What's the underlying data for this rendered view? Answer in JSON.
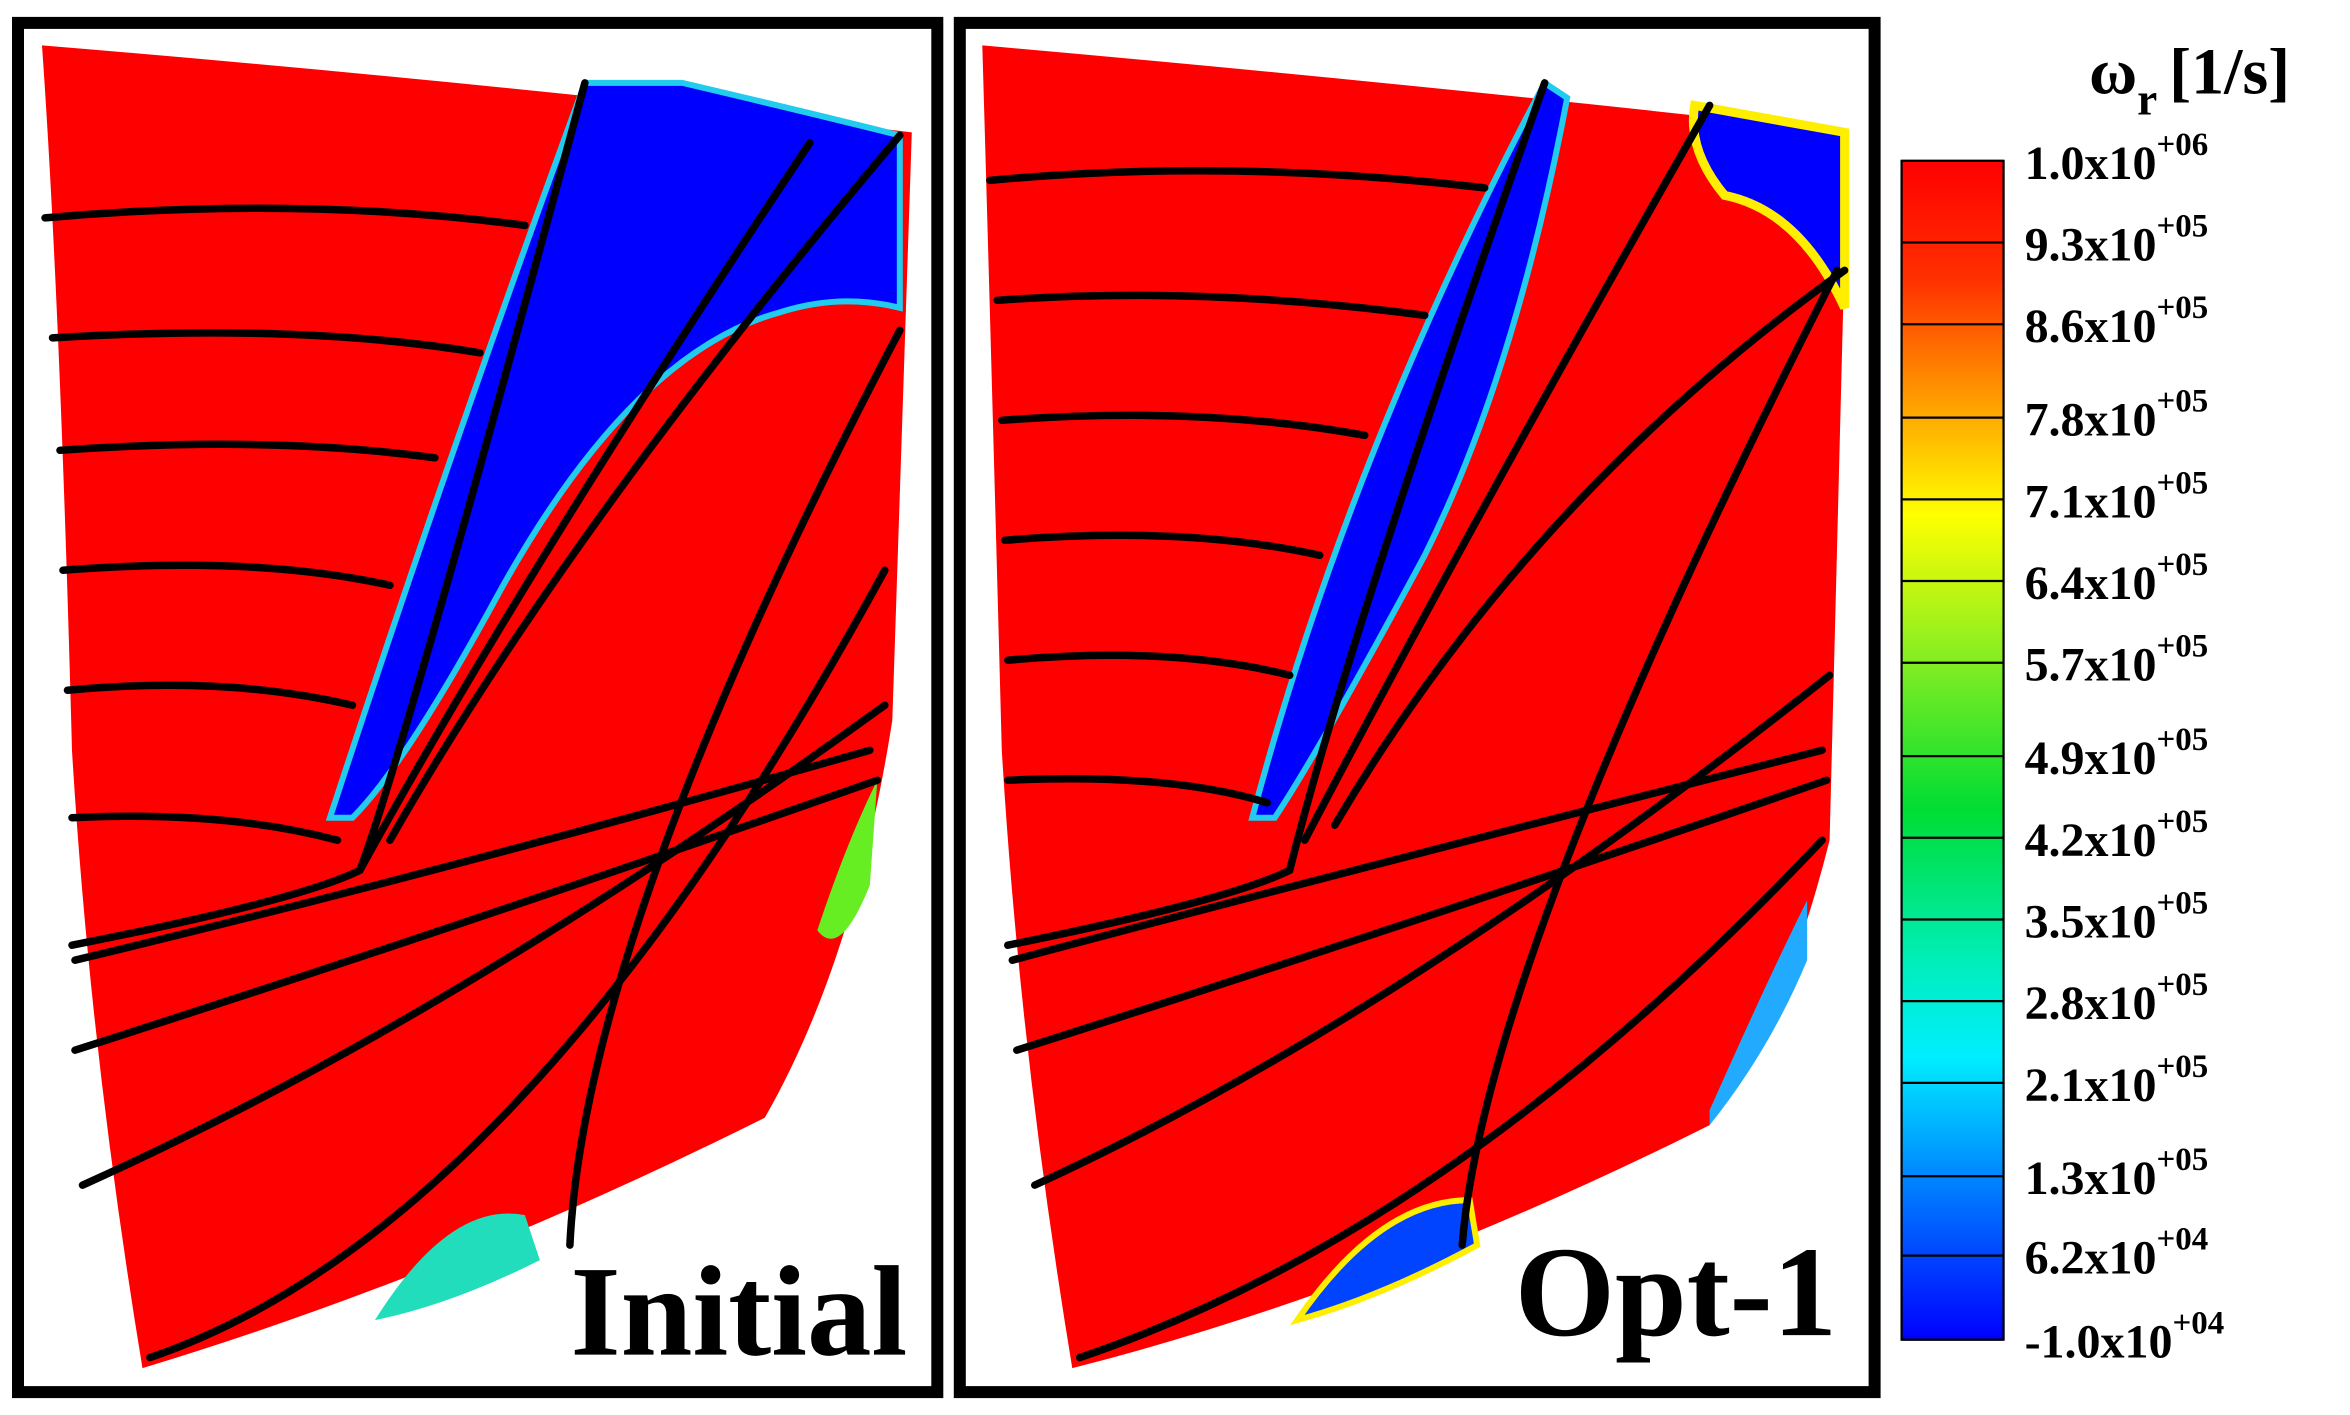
{
  "panels": [
    {
      "label": "Initial"
    },
    {
      "label": "Opt-1"
    }
  ],
  "colorbar": {
    "symbol": "ω",
    "subscript": "r",
    "unit": "[1/s]",
    "ticks": [
      {
        "value": 1000000,
        "label": "1.0x10",
        "exponent": "+06"
      },
      {
        "value": 930000,
        "label": "9.3x10",
        "exponent": "+05"
      },
      {
        "value": 860000,
        "label": "8.6x10",
        "exponent": "+05"
      },
      {
        "value": 780000,
        "label": "7.8x10",
        "exponent": "+05"
      },
      {
        "value": 710000,
        "label": "7.1x10",
        "exponent": "+05"
      },
      {
        "value": 640000,
        "label": "6.4x10",
        "exponent": "+05"
      },
      {
        "value": 570000,
        "label": "5.7x10",
        "exponent": "+05"
      },
      {
        "value": 490000,
        "label": "4.9x10",
        "exponent": "+05"
      },
      {
        "value": 420000,
        "label": "4.2x10",
        "exponent": "+05"
      },
      {
        "value": 350000,
        "label": "3.5x10",
        "exponent": "+05"
      },
      {
        "value": 280000,
        "label": "2.8x10",
        "exponent": "+05"
      },
      {
        "value": 210000,
        "label": "2.1x10",
        "exponent": "+05"
      },
      {
        "value": 130000,
        "label": "1.3x10",
        "exponent": "+05"
      },
      {
        "value": 62000,
        "label": "6.2x10",
        "exponent": "+04"
      },
      {
        "value": -10000,
        "label": "-1.0x10",
        "exponent": "+04"
      }
    ]
  }
}
